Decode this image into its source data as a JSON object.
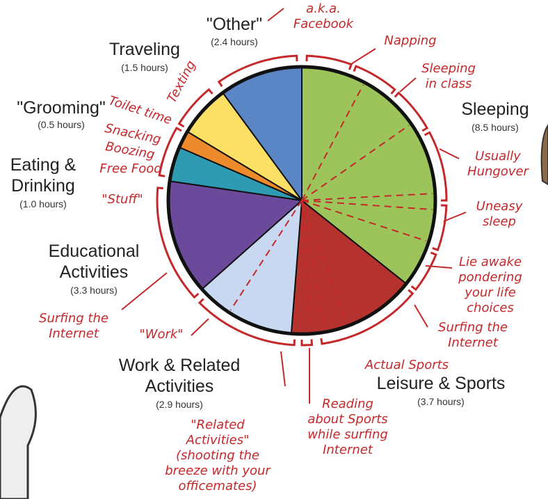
{
  "chart_data": {
    "type": "pie",
    "categories": [
      "Sleeping",
      "Leisure & Sports",
      "Work & Related Activities",
      "Educational Activities",
      "Eating & Drinking",
      "\"Grooming\"",
      "Traveling",
      "\"Other\""
    ],
    "values": [
      8.5,
      3.7,
      2.9,
      3.3,
      1.0,
      0.5,
      1.5,
      2.4
    ],
    "value_labels": [
      "(8.5 hours)",
      "(3.7 hours)",
      "(2.9 hours)",
      "(3.3 hours)",
      "(1.0 hours)",
      "(0.5 hours)",
      "(1.5 hours)",
      "(2.4 hours)"
    ],
    "colors": [
      "#9cc45a",
      "#b5322f",
      "#c8d8f0",
      "#6b4a9c",
      "#2f9bb3",
      "#ec8a2c",
      "#fbe065",
      "#5b86c6"
    ],
    "annotations": [
      {
        "lines": [
          "a.k.a.",
          "Facebook"
        ]
      },
      {
        "lines": [
          "Napping"
        ]
      },
      {
        "lines": [
          "Sleeping",
          "in class"
        ]
      },
      {
        "lines": [
          "Usually",
          "Hungover"
        ]
      },
      {
        "lines": [
          "Uneasy",
          "sleep"
        ]
      },
      {
        "lines": [
          "Lie awake",
          "pondering",
          "your life",
          "choices"
        ]
      },
      {
        "lines": [
          "Surfing the",
          "Internet"
        ]
      },
      {
        "lines": [
          "Actual Sports"
        ]
      },
      {
        "lines": [
          "Reading",
          "about Sports",
          "while surfing",
          "Internet"
        ]
      },
      {
        "lines": [
          "\"Related",
          "Activities\"",
          "(shooting the",
          "breeze with your",
          "officemates)"
        ]
      },
      {
        "lines": [
          "\"Work\""
        ]
      },
      {
        "lines": [
          "Surfing the",
          "Internet"
        ]
      },
      {
        "lines": [
          "\"Stuff\""
        ]
      },
      {
        "lines": [
          "Free Food"
        ]
      },
      {
        "lines": [
          "Boozing"
        ]
      },
      {
        "lines": [
          "Snacking"
        ]
      },
      {
        "lines": [
          "Toilet time"
        ]
      },
      {
        "lines": [
          "Texting"
        ]
      }
    ]
  }
}
